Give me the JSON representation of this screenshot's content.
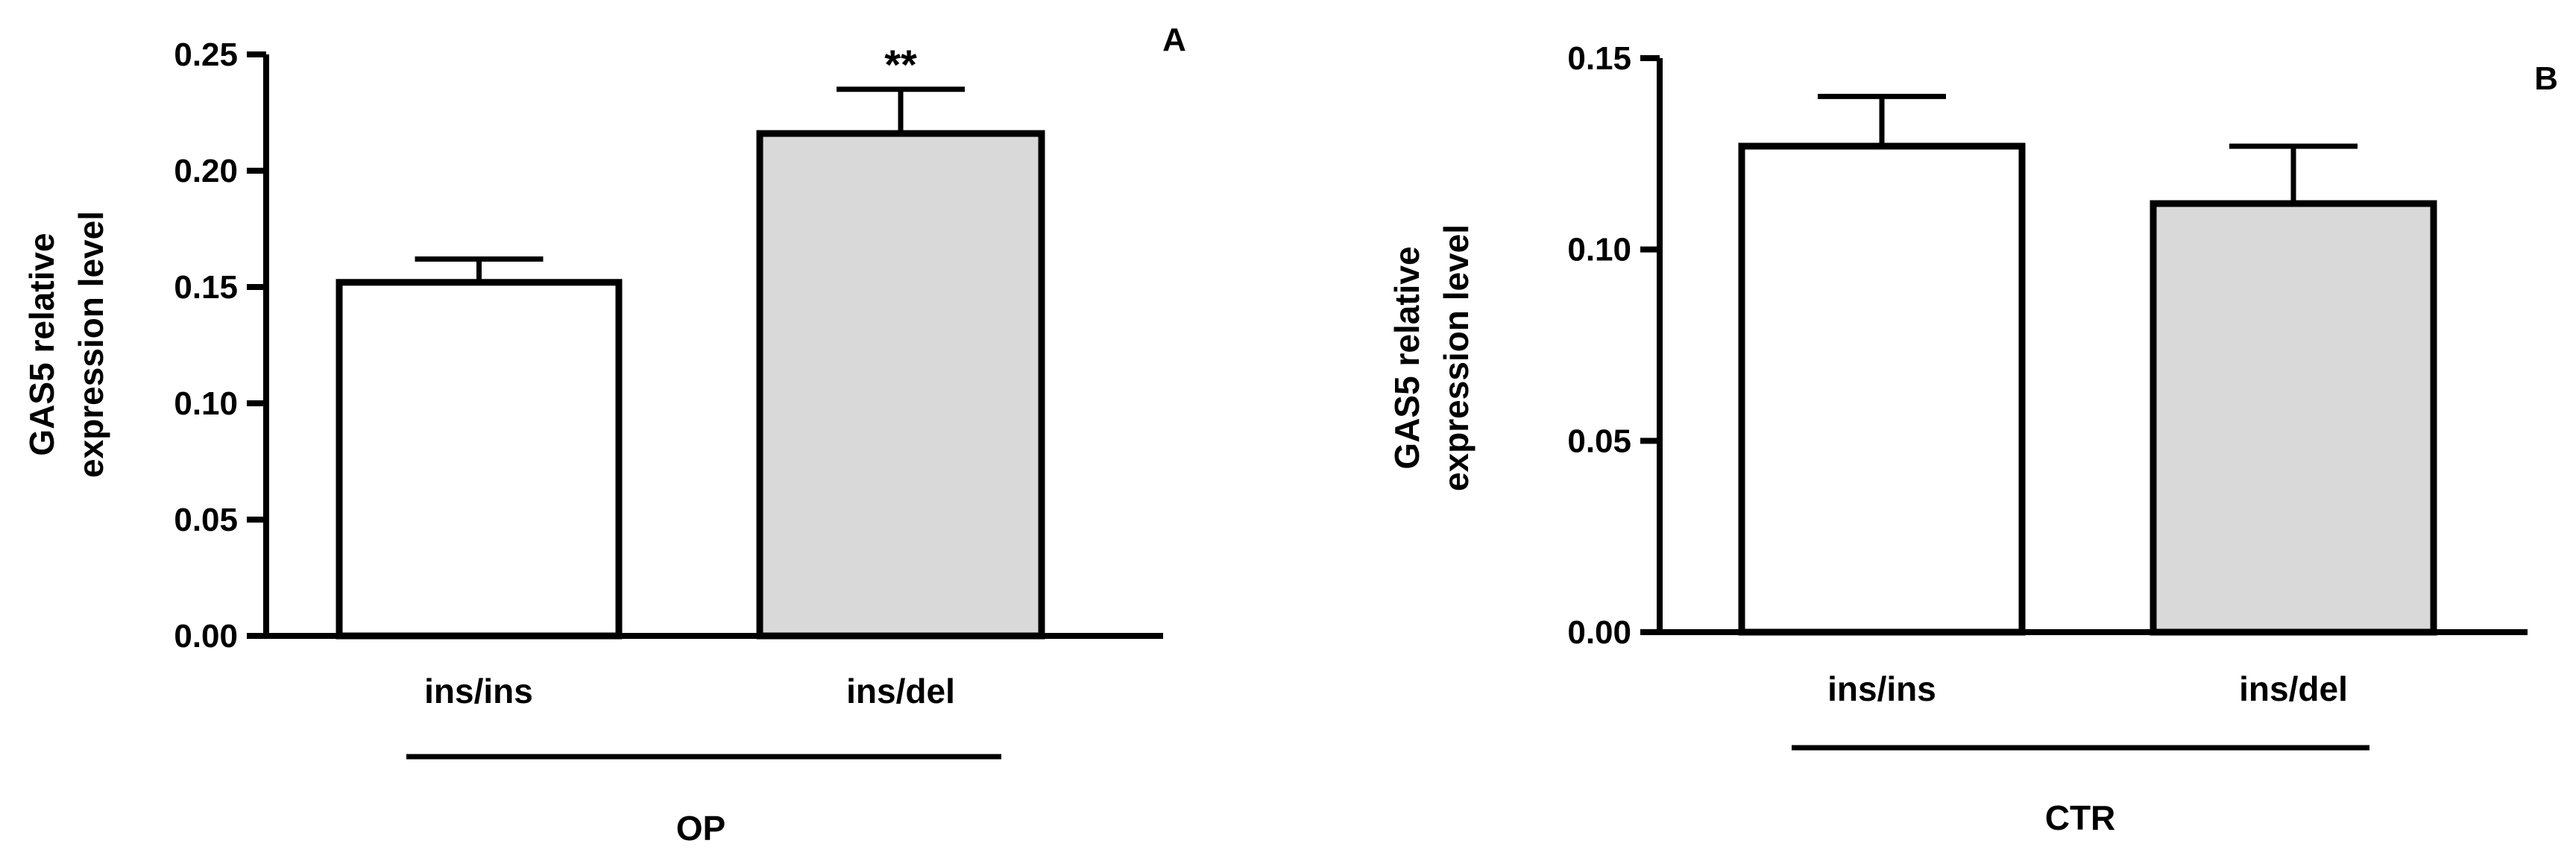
{
  "chart_data": [
    {
      "type": "bar",
      "panel_label": "A",
      "ylabel_line1": "GAS5 relative",
      "ylabel_line2": "expression level",
      "ylim": [
        0,
        0.25
      ],
      "yticks": [
        "0.00",
        "0.05",
        "0.10",
        "0.15",
        "0.20",
        "0.25"
      ],
      "categories": [
        "ins/ins",
        "ins/del"
      ],
      "values": [
        0.152,
        0.216
      ],
      "errors": [
        0.01,
        0.019
      ],
      "bar_colors": [
        "#ffffff",
        "#d9d9d9"
      ],
      "significance": [
        "",
        "**"
      ],
      "group_label": "OP"
    },
    {
      "type": "bar",
      "panel_label": "B",
      "ylabel_line1": "GAS5 relative",
      "ylabel_line2": "expression level",
      "ylim": [
        0,
        0.15
      ],
      "yticks": [
        "0.00",
        "0.05",
        "0.10",
        "0.15"
      ],
      "categories": [
        "ins/ins",
        "ins/del"
      ],
      "values": [
        0.127,
        0.112
      ],
      "errors": [
        0.013,
        0.015
      ],
      "bar_colors": [
        "#ffffff",
        "#d9d9d9"
      ],
      "significance": [
        "",
        ""
      ],
      "group_label": "CTR"
    }
  ]
}
